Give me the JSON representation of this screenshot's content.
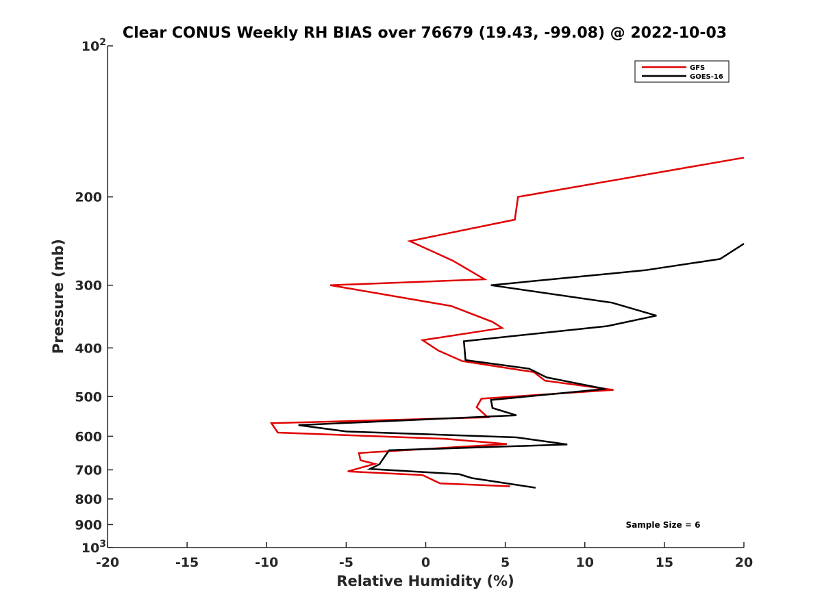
{
  "chart_data": {
    "type": "line",
    "title": "Clear CONUS Weekly RH BIAS over 76679 (19.43, -99.08) @ 2022-10-03",
    "xlabel": "Relative Humidity (%)",
    "ylabel": "Pressure (mb)",
    "xlim": [
      -20,
      20
    ],
    "ylim": [
      100,
      1000
    ],
    "y_scale": "log",
    "y_reversed": true,
    "x_ticks": [
      "-20",
      "-15",
      "-10",
      "-5",
      "0",
      "5",
      "10",
      "15",
      "20"
    ],
    "y_ticks": [
      {
        "value": 100,
        "label": "10",
        "sup": "2"
      },
      {
        "value": 200,
        "label": "200"
      },
      {
        "value": 300,
        "label": "300"
      },
      {
        "value": 400,
        "label": "400"
      },
      {
        "value": 500,
        "label": "500"
      },
      {
        "value": 600,
        "label": "600"
      },
      {
        "value": 700,
        "label": "700"
      },
      {
        "value": 800,
        "label": "800"
      },
      {
        "value": 900,
        "label": "900"
      },
      {
        "value": 1000,
        "label": "10",
        "sup": "3"
      }
    ],
    "grid": false,
    "legend_position": "top-right",
    "series": [
      {
        "name": "GFS",
        "color": "#e00000",
        "x": [
          20,
          5.8,
          5.6,
          -1.0,
          1.7,
          3.7,
          -6.0,
          1.6,
          4.2,
          4.8,
          -0.2,
          0.8,
          2.3,
          6.8,
          7.5,
          11.8,
          3.5,
          3.2,
          3.9,
          -9.7,
          -9.3,
          1.2,
          5.1,
          -4.2,
          -4.1,
          -3.2,
          -4.9,
          -0.2,
          0.9,
          5.3
        ],
        "y": [
          167,
          200,
          222,
          245,
          268,
          292,
          300,
          330,
          355,
          365,
          386,
          405,
          425,
          447,
          465,
          485,
          505,
          525,
          550,
          565,
          590,
          607,
          622,
          648,
          670,
          681,
          705,
          717,
          745,
          755
        ]
      },
      {
        "name": "GOES-16",
        "color": "#000000",
        "x": [
          20,
          18.5,
          13.8,
          4.1,
          11.7,
          14.5,
          11.4,
          2.4,
          2.5,
          6.5,
          7.6,
          11.3,
          4.1,
          4.2,
          5.7,
          -8.0,
          -5.0,
          5.7,
          8.9,
          -2.3,
          -2.7,
          -2.9,
          -3.5,
          2.1,
          2.9,
          6.9
        ],
        "y": [
          248,
          266,
          280,
          300,
          325,
          345,
          362,
          388,
          423,
          440,
          458,
          483,
          508,
          527,
          545,
          570,
          587,
          603,
          623,
          640,
          667,
          682,
          697,
          714,
          727,
          760
        ]
      }
    ],
    "annotations": [
      "Sample Size = 6"
    ]
  }
}
